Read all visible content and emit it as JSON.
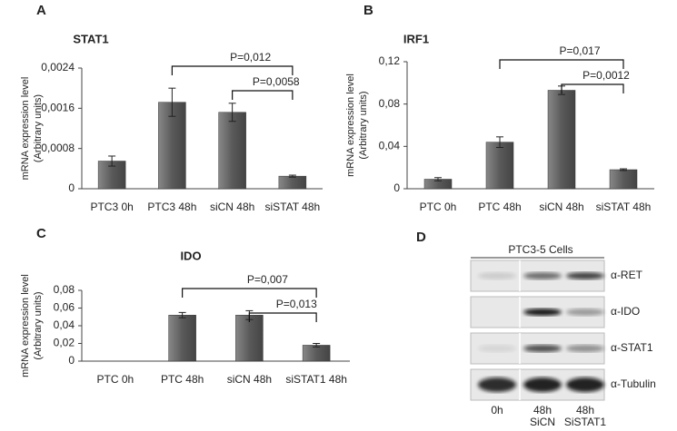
{
  "chart_data": [
    {
      "type": "bar",
      "panel": "A",
      "title": "STAT1",
      "ylabel": [
        "mRNA expression level",
        "(Arbitrary units)"
      ],
      "categories": [
        "PTC3 0h",
        "PTC3 48h",
        "siCN 48h",
        "siSTAT 48h"
      ],
      "values": [
        0.00055,
        0.00172,
        0.00152,
        0.00025
      ],
      "errors": [
        0.0001,
        0.00028,
        0.00018,
        2e-05
      ],
      "color": "#6b6b6b",
      "ylim": [
        0,
        0.0024
      ],
      "yticks": [
        0,
        {
          "value": 0.0008,
          "label": "0,0008"
        },
        {
          "value": 0.0016,
          "label": "0,0016"
        },
        {
          "value": 0.0024,
          "label": "0,0024"
        }
      ],
      "annotations": [
        {
          "text": "P=0,012",
          "between": [
            "PTC3 48h",
            "siSTAT 48h"
          ]
        },
        {
          "text": "P=0,0058",
          "between": [
            "siCN 48h",
            "siSTAT 48h"
          ]
        }
      ]
    },
    {
      "type": "bar",
      "panel": "B",
      "title": "IRF1",
      "ylabel": [
        "mRNA expression level",
        "(Arbitrary units)"
      ],
      "categories": [
        "PTC 0h",
        "PTC 48h",
        "siCN 48h",
        "siSTAT 48h"
      ],
      "values": [
        0.009,
        0.044,
        0.093,
        0.018
      ],
      "errors": [
        0.0015,
        0.005,
        0.004,
        0.0008
      ],
      "color": "#6b6b6b",
      "ylim": [
        0,
        0.12
      ],
      "yticks": [
        0,
        {
          "value": 0.04,
          "label": "0,04"
        },
        {
          "value": 0.08,
          "label": "0,08"
        },
        {
          "value": 0.12,
          "label": "0,12"
        }
      ],
      "annotations": [
        {
          "text": "P=0,017",
          "between": [
            "PTC 48h",
            "siSTAT 48h"
          ]
        },
        {
          "text": "P=0,0012",
          "between": [
            "siCN 48h",
            "siSTAT 48h"
          ]
        }
      ]
    },
    {
      "type": "bar",
      "panel": "C",
      "title": "IDO",
      "ylabel": [
        "mRNA expression level",
        "(Arbitrary units)"
      ],
      "categories": [
        "PTC 0h",
        "PTC 48h",
        "siCN 48h",
        "siSTAT1 48h"
      ],
      "values": [
        0,
        0.052,
        0.052,
        0.018
      ],
      "errors": [
        0,
        0.003,
        0.005,
        0.002
      ],
      "color": "#6b6b6b",
      "ylim": [
        0,
        0.08
      ],
      "yticks": [
        0,
        {
          "value": 0.02,
          "label": "0,02"
        },
        {
          "value": 0.04,
          "label": "0,04"
        },
        {
          "value": 0.06,
          "label": "0,06"
        },
        {
          "value": 0.08,
          "label": "0,08"
        }
      ],
      "annotations": [
        {
          "text": "P=0,007",
          "between": [
            "PTC 48h",
            "siSTAT1 48h"
          ]
        },
        {
          "text": "P=0,013",
          "between": [
            "siCN 48h",
            "siSTAT1 48h"
          ]
        }
      ]
    }
  ],
  "blot": {
    "panel": "D",
    "header": "PTC3-5 Cells",
    "rows": [
      "α-RET",
      "α-IDO",
      "α-STAT1",
      "α-Tubulin"
    ],
    "lanes": [
      [
        "0h"
      ],
      [
        "48h",
        "SiCN"
      ],
      [
        "48h",
        "SiSTAT1"
      ]
    ]
  }
}
